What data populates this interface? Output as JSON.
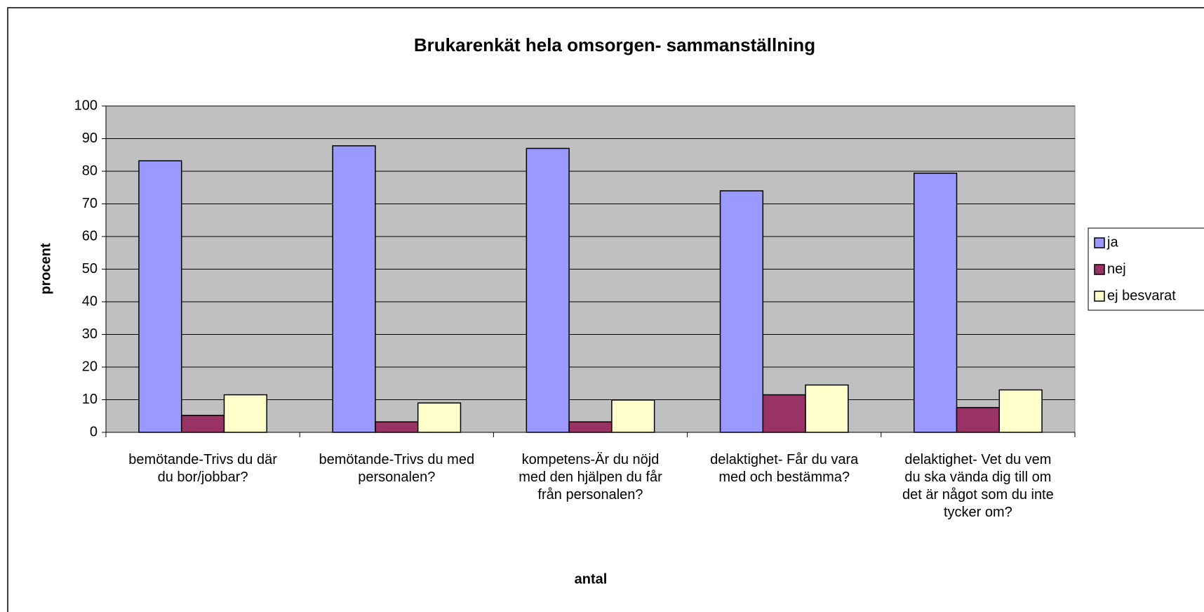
{
  "chart_data": {
    "type": "bar",
    "title": "Brukarenkät hela omsorgen- sammanställning",
    "y_label": "procent",
    "x_label": "antal",
    "categories": [
      "bemötande-Trivs du där du bor/jobbar?",
      "bemötande-Trivs du med personalen?",
      "kompetens-Är du nöjd med den hjälpen du får från personalen?",
      "delaktighet- Får du vara med och bestämma?",
      "delaktighet- Vet du vem du ska vända dig till om det är något som du inte tycker om?"
    ],
    "series": [
      {
        "name": "ja",
        "color": "#9999ff",
        "values": [
          83.2,
          87.8,
          87,
          74,
          79.4
        ]
      },
      {
        "name": "nej",
        "color": "#993366",
        "values": [
          5.2,
          3.2,
          3.2,
          11.5,
          7.6
        ]
      },
      {
        "name": "ej besvarat",
        "color": "#ffffcc",
        "values": [
          11.5,
          9,
          9.9,
          14.5,
          13
        ]
      }
    ],
    "ylim": [
      0,
      100
    ],
    "yticks": [
      0,
      10,
      20,
      30,
      40,
      50,
      60,
      70,
      80,
      90,
      100
    ],
    "grid": true,
    "legend": "right"
  }
}
